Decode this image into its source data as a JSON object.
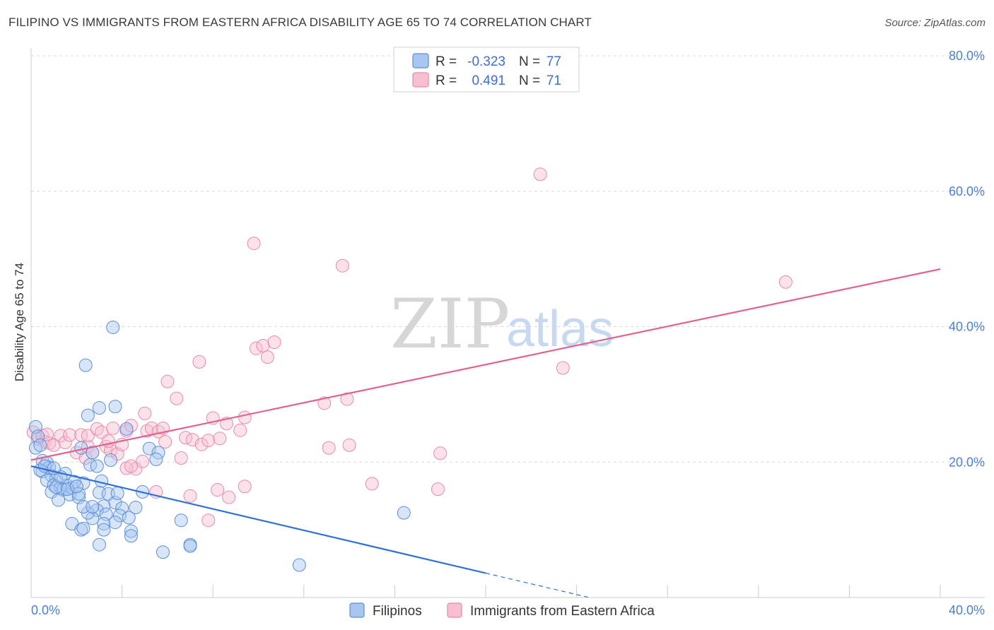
{
  "title": "FILIPINO VS IMMIGRANTS FROM EASTERN AFRICA DISABILITY AGE 65 TO 74 CORRELATION CHART",
  "source": "Source: ZipAtlas.com",
  "watermark": {
    "zip": "ZIP",
    "atlas": "atlas"
  },
  "colors": {
    "blue_fill": "#a9c6f0",
    "blue_stroke": "#5b8fd8",
    "blue_line": "#2f72d6",
    "pink_fill": "#f7bfd0",
    "pink_stroke": "#e88aa8",
    "pink_line": "#e2628f",
    "grid": "#d9d9d9",
    "axis_text": "#4a7fd4"
  },
  "legend": {
    "series1": {
      "r_label": "R =",
      "r_value": "-0.323",
      "n_label": "N =",
      "n_value": "77"
    },
    "series2": {
      "r_label": "R =",
      "r_value": "0.491",
      "n_label": "N =",
      "n_value": "71"
    }
  },
  "bottom_legend": {
    "series1": "Filipinos",
    "series2": "Immigrants from Eastern Africa"
  },
  "chart_data": {
    "type": "scatter",
    "title": "FILIPINO VS IMMIGRANTS FROM EASTERN AFRICA DISABILITY AGE 65 TO 74 CORRELATION CHART",
    "xlabel": "",
    "ylabel": "Disability Age 65 to 74",
    "xlim": [
      0,
      40
    ],
    "ylim": [
      0,
      80
    ],
    "x_tick_labels": [
      "0.0%",
      "40.0%"
    ],
    "y_ticks": [
      20,
      40,
      60,
      80
    ],
    "y_tick_labels": [
      "20.0%",
      "40.0%",
      "60.0%",
      "80.0%"
    ],
    "grid": true,
    "legend_position": "top-center",
    "series": [
      {
        "name": "Filipinos",
        "color": "#5b8fd8",
        "r": -0.323,
        "n": 77,
        "trend": {
          "x0": 0,
          "y0": 19.4,
          "x1": 20,
          "y1": 3.6,
          "dashed_to_x": 24.5
        },
        "points": [
          [
            0.2,
            25.2
          ],
          [
            0.3,
            23.8
          ],
          [
            0.2,
            22.1
          ],
          [
            0.4,
            22.5
          ],
          [
            0.5,
            20.2
          ],
          [
            0.7,
            19.9
          ],
          [
            0.8,
            19.2
          ],
          [
            0.5,
            18.6
          ],
          [
            0.9,
            18.0
          ],
          [
            1.1,
            17.6
          ],
          [
            0.7,
            17.3
          ],
          [
            1.5,
            18.3
          ],
          [
            1.0,
            16.6
          ],
          [
            1.3,
            16.2
          ],
          [
            1.6,
            16.5
          ],
          [
            1.4,
            15.9
          ],
          [
            0.9,
            15.6
          ],
          [
            1.7,
            15.2
          ],
          [
            1.8,
            16.2
          ],
          [
            2.1,
            14.8
          ],
          [
            1.2,
            14.4
          ],
          [
            2.3,
            16.9
          ],
          [
            1.9,
            17.1
          ],
          [
            2.2,
            22.1
          ],
          [
            2.6,
            19.6
          ],
          [
            2.7,
            21.4
          ],
          [
            2.9,
            19.4
          ],
          [
            2.5,
            26.9
          ],
          [
            2.4,
            34.3
          ],
          [
            3.0,
            28.0
          ],
          [
            3.7,
            28.2
          ],
          [
            3.6,
            39.9
          ],
          [
            3.5,
            20.3
          ],
          [
            4.2,
            24.9
          ],
          [
            5.2,
            22.0
          ],
          [
            5.6,
            21.4
          ],
          [
            5.5,
            20.4
          ],
          [
            3.1,
            17.2
          ],
          [
            3.0,
            15.5
          ],
          [
            3.4,
            15.3
          ],
          [
            3.7,
            14.0
          ],
          [
            3.2,
            13.5
          ],
          [
            2.9,
            12.9
          ],
          [
            3.3,
            12.3
          ],
          [
            4.0,
            13.2
          ],
          [
            4.6,
            13.3
          ],
          [
            3.9,
            12.1
          ],
          [
            4.3,
            11.8
          ],
          [
            2.7,
            11.7
          ],
          [
            2.5,
            12.5
          ],
          [
            2.3,
            13.4
          ],
          [
            2.7,
            13.4
          ],
          [
            1.8,
            10.9
          ],
          [
            2.2,
            10.0
          ],
          [
            2.3,
            10.2
          ],
          [
            3.2,
            10.9
          ],
          [
            3.2,
            10.0
          ],
          [
            3.7,
            11.1
          ],
          [
            4.4,
            9.8
          ],
          [
            4.4,
            9.1
          ],
          [
            3.0,
            7.8
          ],
          [
            5.8,
            6.7
          ],
          [
            7.0,
            7.8
          ],
          [
            7.0,
            7.6
          ],
          [
            6.6,
            11.4
          ],
          [
            11.8,
            4.8
          ],
          [
            16.4,
            12.5
          ],
          [
            4.9,
            15.6
          ],
          [
            1.1,
            16.3
          ],
          [
            0.4,
            18.8
          ],
          [
            2.1,
            15.3
          ],
          [
            1.6,
            16.0
          ],
          [
            1.3,
            17.8
          ],
          [
            0.6,
            19.4
          ],
          [
            3.8,
            15.4
          ],
          [
            2.0,
            16.4
          ],
          [
            1.0,
            19.1
          ]
        ]
      },
      {
        "name": "Immigrants from Eastern Africa",
        "color": "#e88aa8",
        "r": 0.491,
        "n": 71,
        "trend": {
          "x0": 0,
          "y0": 20.3,
          "x1": 40,
          "y1": 48.5
        },
        "points": [
          [
            0.1,
            24.4
          ],
          [
            0.3,
            23.4
          ],
          [
            0.5,
            23.9
          ],
          [
            0.6,
            23.0
          ],
          [
            0.8,
            22.8
          ],
          [
            1.0,
            22.5
          ],
          [
            0.7,
            24.1
          ],
          [
            1.3,
            23.9
          ],
          [
            1.5,
            22.9
          ],
          [
            1.7,
            24.0
          ],
          [
            2.0,
            21.4
          ],
          [
            2.2,
            24.0
          ],
          [
            2.5,
            22.3
          ],
          [
            2.4,
            20.6
          ],
          [
            2.7,
            21.4
          ],
          [
            2.5,
            23.9
          ],
          [
            2.9,
            24.9
          ],
          [
            3.1,
            24.4
          ],
          [
            3.3,
            22.3
          ],
          [
            3.5,
            21.7
          ],
          [
            3.4,
            23.1
          ],
          [
            3.6,
            25.0
          ],
          [
            3.8,
            21.2
          ],
          [
            4.0,
            22.6
          ],
          [
            4.2,
            24.6
          ],
          [
            4.4,
            25.4
          ],
          [
            4.6,
            19.0
          ],
          [
            4.2,
            19.1
          ],
          [
            4.9,
            20.1
          ],
          [
            5.0,
            27.2
          ],
          [
            5.1,
            24.6
          ],
          [
            5.3,
            25.0
          ],
          [
            5.6,
            24.5
          ],
          [
            5.8,
            25.0
          ],
          [
            5.9,
            23.0
          ],
          [
            6.0,
            31.9
          ],
          [
            6.4,
            29.4
          ],
          [
            6.6,
            20.6
          ],
          [
            6.8,
            23.6
          ],
          [
            7.1,
            23.3
          ],
          [
            7.4,
            34.8
          ],
          [
            7.5,
            22.6
          ],
          [
            7.8,
            23.2
          ],
          [
            8.0,
            26.5
          ],
          [
            8.3,
            23.5
          ],
          [
            8.6,
            25.7
          ],
          [
            9.2,
            24.7
          ],
          [
            9.4,
            26.6
          ],
          [
            9.9,
            36.8
          ],
          [
            10.2,
            37.2
          ],
          [
            10.4,
            35.5
          ],
          [
            10.7,
            37.7
          ],
          [
            9.8,
            52.3
          ],
          [
            12.9,
            28.7
          ],
          [
            13.1,
            22.1
          ],
          [
            13.7,
            49.0
          ],
          [
            13.9,
            29.3
          ],
          [
            14.0,
            22.5
          ],
          [
            15.0,
            16.8
          ],
          [
            18.0,
            21.3
          ],
          [
            17.9,
            16.0
          ],
          [
            22.4,
            62.5
          ],
          [
            23.4,
            33.9
          ],
          [
            33.2,
            46.6
          ],
          [
            5.5,
            15.6
          ],
          [
            7.0,
            15.0
          ],
          [
            8.2,
            15.9
          ],
          [
            8.7,
            14.8
          ],
          [
            9.4,
            16.4
          ],
          [
            7.8,
            11.4
          ],
          [
            4.4,
            19.4
          ]
        ]
      }
    ]
  }
}
